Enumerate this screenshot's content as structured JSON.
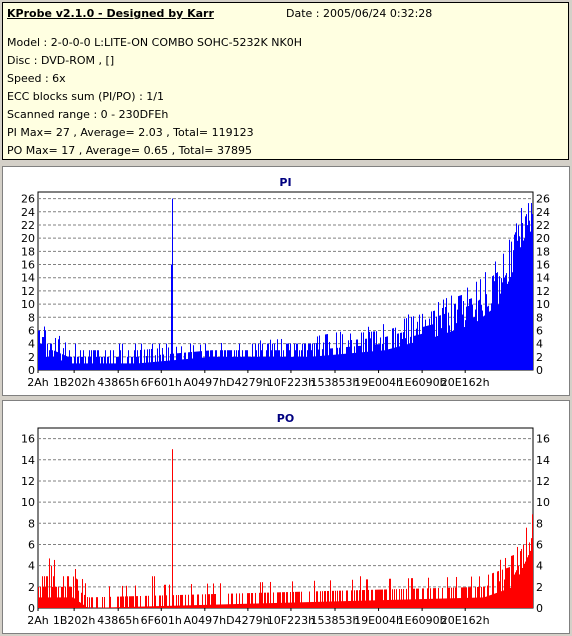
{
  "header": {
    "title": "KProbe v2.1.0 - Designed by Karr",
    "date": "Date : 2005/06/24 0:32:28",
    "lines": [
      "Model : 2-0-0-0 L:LITE-ON COMBO SOHC-5232K NK0H",
      "Disc : DVD-ROM ,  []",
      "Speed : 6x",
      "ECC blocks sum (PI/PO) : 1/1",
      "Scanned range : 0 - 230DFEh",
      "PI Max= 27 , Average= 2.03 , Total= 119123",
      "PO Max= 17 , Average= 0.65 , Total= 37895"
    ]
  },
  "colors": {
    "pi": "#0000ff",
    "po": "#ff0000",
    "title": "#000080",
    "grid": "#808080"
  },
  "chart_data": [
    {
      "type": "bar",
      "title": "PI",
      "ylim": [
        0,
        27
      ],
      "yticks": [
        0,
        2,
        4,
        6,
        8,
        10,
        12,
        14,
        16,
        18,
        20,
        22,
        24,
        26
      ],
      "xlim": [
        0,
        1.0
      ],
      "xticks": [
        "2Ah",
        "1B202h",
        "43865h",
        "6F601h",
        "A0497h",
        "D4279h",
        "10F223h",
        "153853h",
        "19E004h",
        "1E6090h",
        "20E162h"
      ],
      "xtick_pos": [
        0,
        0.073,
        0.162,
        0.249,
        0.337,
        0.424,
        0.511,
        0.6,
        0.688,
        0.776,
        0.863
      ],
      "grid": true,
      "profile": [
        {
          "x": 0.0,
          "base": 2,
          "peak": 6
        },
        {
          "x": 0.03,
          "base": 2,
          "peak": 5
        },
        {
          "x": 0.06,
          "base": 1,
          "peak": 3
        },
        {
          "x": 0.2,
          "base": 1,
          "peak": 3
        },
        {
          "x": 0.35,
          "base": 2,
          "peak": 3
        },
        {
          "x": 0.55,
          "base": 2,
          "peak": 4
        },
        {
          "x": 0.7,
          "base": 3,
          "peak": 6
        },
        {
          "x": 0.8,
          "base": 5,
          "peak": 9
        },
        {
          "x": 0.88,
          "base": 7,
          "peak": 12
        },
        {
          "x": 0.93,
          "base": 10,
          "peak": 16
        },
        {
          "x": 0.97,
          "base": 17,
          "peak": 23
        },
        {
          "x": 1.0,
          "base": 22,
          "peak": 26
        }
      ],
      "spikes": [
        {
          "x": 0.271,
          "value": 26
        },
        {
          "x": 0.269,
          "value": 16
        }
      ]
    },
    {
      "type": "bar",
      "title": "PO",
      "ylim": [
        0,
        17
      ],
      "yticks": [
        0,
        2,
        4,
        6,
        8,
        10,
        12,
        14,
        16
      ],
      "xlim": [
        0,
        1.0
      ],
      "xticks": [
        "2Ah",
        "1B202h",
        "43865h",
        "6F601h",
        "A0497h",
        "D4279h",
        "10F223h",
        "153853h",
        "19E004h",
        "1E6090h",
        "20E162h"
      ],
      "xtick_pos": [
        0,
        0.073,
        0.162,
        0.249,
        0.337,
        0.424,
        0.511,
        0.6,
        0.688,
        0.776,
        0.863
      ],
      "grid": true,
      "profile": [
        {
          "x": 0.0,
          "base": 1,
          "peak": 4
        },
        {
          "x": 0.07,
          "base": 1,
          "peak": 3
        },
        {
          "x": 0.1,
          "base": 0,
          "peak": 1
        },
        {
          "x": 0.9,
          "base": 1,
          "peak": 2
        },
        {
          "x": 0.96,
          "base": 2,
          "peak": 5
        },
        {
          "x": 1.0,
          "base": 6,
          "peak": 8
        }
      ],
      "spikes": [
        {
          "x": 0.27,
          "value": 15
        },
        {
          "x": 0.23,
          "value": 3
        },
        {
          "x": 0.235,
          "value": 3
        },
        {
          "x": 0.65,
          "value": 3
        },
        {
          "x": 0.955,
          "value": 4
        }
      ]
    }
  ]
}
